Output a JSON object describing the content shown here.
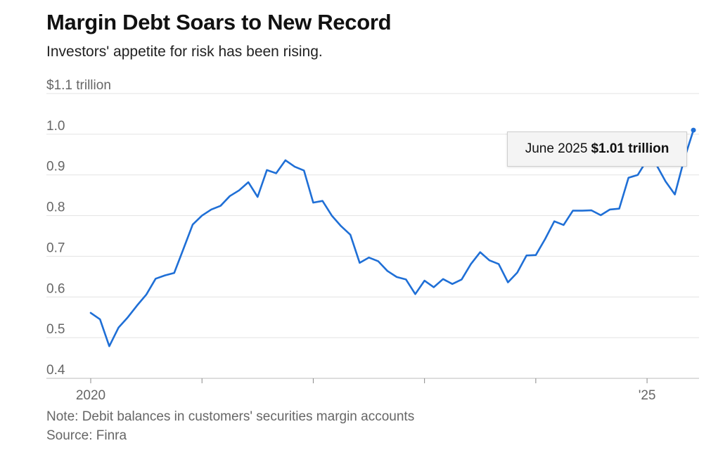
{
  "title": "Margin Debt Soars to New Record",
  "subtitle": "Investors' appetite for risk has been rising.",
  "note": "Note: Debit balances in customers' securities margin accounts",
  "source": "Source: Finra",
  "tooltip": {
    "date": "June 2025",
    "value": "$1.01 trillion"
  },
  "colors": {
    "line": "#1f6fd6",
    "grid": "#e3e3e3",
    "axis": "#bbbbbb",
    "text": "#666666"
  },
  "chart_data": {
    "type": "line",
    "xlabel": "",
    "ylabel": "",
    "ylim": [
      0.4,
      1.1
    ],
    "yticks": [
      {
        "value": 1.1,
        "label": "$1.1 trillion"
      },
      {
        "value": 1.0,
        "label": "1.0"
      },
      {
        "value": 0.9,
        "label": "0.9"
      },
      {
        "value": 0.8,
        "label": "0.8"
      },
      {
        "value": 0.7,
        "label": "0.7"
      },
      {
        "value": 0.6,
        "label": "0.6"
      },
      {
        "value": 0.5,
        "label": "0.5"
      },
      {
        "value": 0.4,
        "label": "0.4"
      }
    ],
    "xlim": [
      "2020-01",
      "2025-06"
    ],
    "xticks": [
      {
        "value": "2020-01",
        "label": "2020"
      },
      {
        "value": "2021-01",
        "label": ""
      },
      {
        "value": "2022-01",
        "label": ""
      },
      {
        "value": "2023-01",
        "label": ""
      },
      {
        "value": "2024-01",
        "label": ""
      },
      {
        "value": "2025-01",
        "label": "'25"
      }
    ],
    "grid": true,
    "series": [
      {
        "x": [
          "2020-01",
          "2020-02",
          "2020-03",
          "2020-04",
          "2020-05",
          "2020-06",
          "2020-07",
          "2020-08",
          "2020-09",
          "2020-10",
          "2020-11",
          "2020-12",
          "2021-01",
          "2021-02",
          "2021-03",
          "2021-04",
          "2021-05",
          "2021-06",
          "2021-07",
          "2021-08",
          "2021-09",
          "2021-10",
          "2021-11",
          "2021-12",
          "2022-01",
          "2022-02",
          "2022-03",
          "2022-04",
          "2022-05",
          "2022-06",
          "2022-07",
          "2022-08",
          "2022-09",
          "2022-10",
          "2022-11",
          "2022-12",
          "2023-01",
          "2023-02",
          "2023-03",
          "2023-04",
          "2023-05",
          "2023-06",
          "2023-07",
          "2023-08",
          "2023-09",
          "2023-10",
          "2023-11",
          "2023-12",
          "2024-01",
          "2024-02",
          "2024-03",
          "2024-04",
          "2024-05",
          "2024-06",
          "2024-07",
          "2024-08",
          "2024-09",
          "2024-10",
          "2024-11",
          "2024-12",
          "2025-01",
          "2025-02",
          "2025-03",
          "2025-04",
          "2025-05",
          "2025-06"
        ],
        "values": [
          0.561,
          0.545,
          0.479,
          0.525,
          0.55,
          0.579,
          0.606,
          0.645,
          0.653,
          0.659,
          0.718,
          0.778,
          0.8,
          0.815,
          0.824,
          0.848,
          0.862,
          0.882,
          0.846,
          0.912,
          0.904,
          0.936,
          0.92,
          0.911,
          0.832,
          0.836,
          0.8,
          0.774,
          0.753,
          0.684,
          0.697,
          0.688,
          0.664,
          0.649,
          0.643,
          0.607,
          0.64,
          0.624,
          0.644,
          0.632,
          0.643,
          0.681,
          0.71,
          0.69,
          0.681,
          0.636,
          0.66,
          0.702,
          0.703,
          0.742,
          0.786,
          0.777,
          0.812,
          0.812,
          0.813,
          0.801,
          0.815,
          0.817,
          0.893,
          0.9,
          0.937,
          0.925,
          0.884,
          0.852,
          0.938,
          1.01
        ]
      }
    ],
    "highlight": {
      "x": "2025-06",
      "value": 1.01
    }
  }
}
